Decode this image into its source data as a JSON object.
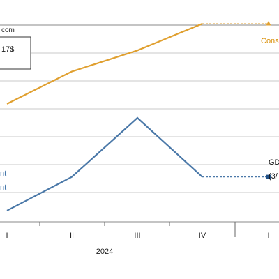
{
  "source_fragment": "com",
  "legend_fragment": "17$",
  "chart_data": {
    "type": "line",
    "categories": [
      "I",
      "II",
      "III",
      "IV",
      "I"
    ],
    "year_label": "2024",
    "grid": true,
    "series": [
      {
        "name": "Cons",
        "color": "#e0a030",
        "values": [
          null,
          2.2,
          3.7,
          5.6,
          5.6
        ],
        "first_point_value": -0.1,
        "marker": "triangle"
      },
      {
        "name": "GD",
        "sub_label": "(3/",
        "color": "#4a78a8",
        "values": [
          null,
          -5.3,
          -1.1,
          -5.3,
          -5.3
        ],
        "first_point_value": -7.7,
        "marker": "square"
      }
    ],
    "left_fragments": [
      "nt",
      "nt"
    ],
    "ylim": [
      -8,
      6
    ]
  }
}
